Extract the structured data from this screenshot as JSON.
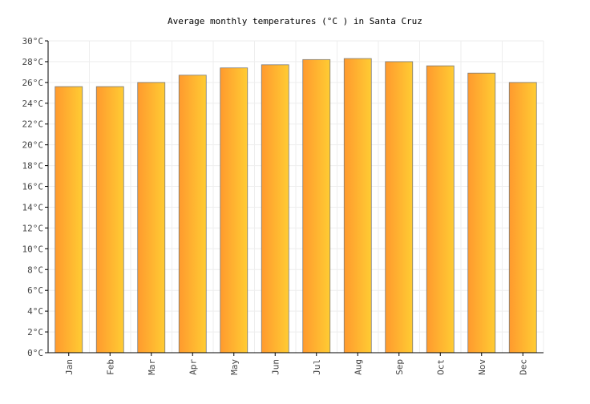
{
  "chart_data": {
    "type": "bar",
    "title": "Average monthly temperatures (°C ) in Santa Cruz",
    "xlabel": "",
    "ylabel": "",
    "categories": [
      "Jan",
      "Feb",
      "Mar",
      "Apr",
      "May",
      "Jun",
      "Jul",
      "Aug",
      "Sep",
      "Oct",
      "Nov",
      "Dec"
    ],
    "series": [
      {
        "name": "Average temperature",
        "values": [
          25.6,
          25.6,
          26.0,
          26.7,
          27.4,
          27.7,
          28.2,
          28.3,
          28.0,
          27.6,
          26.9,
          26.0
        ]
      }
    ],
    "ylim": [
      0,
      30
    ],
    "ytick_step": 2,
    "ytick_labels": [
      "0°C",
      "2°C",
      "4°C",
      "6°C",
      "8°C",
      "10°C",
      "12°C",
      "14°C",
      "16°C",
      "18°C",
      "20°C",
      "22°C",
      "24°C",
      "26°C",
      "28°C",
      "30°C"
    ],
    "grid": true,
    "legend": "none",
    "colors": {
      "bar_start": "#ff9a2e",
      "bar_end": "#ffcc33",
      "bar_outline": "#7a7a7a",
      "grid": "#eeeeee",
      "axis": "#000000"
    }
  }
}
